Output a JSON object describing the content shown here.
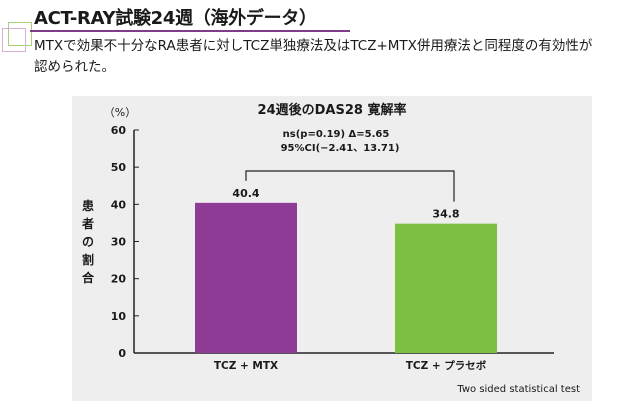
{
  "header": {
    "title": "ACT-RAY試験24週（海外データ）",
    "subtitle": "MTXで効果不十分なRA患者に対しTCZ単独療法及はTCZ+MTX併用療法と同程度の有効性が認められた。"
  },
  "chart_data": {
    "type": "bar",
    "title": "24週後のDAS28 寛解率",
    "categories": [
      "TCZ + MTX",
      "TCZ + プラセボ"
    ],
    "values": [
      40.4,
      34.8
    ],
    "value_labels": [
      "40.4",
      "34.8"
    ],
    "colors": [
      "#8e3b96",
      "#7cc043"
    ],
    "ylabel": "患者の割合",
    "yunit": "（%）",
    "ylim": [
      0,
      60
    ],
    "yticks": [
      0,
      10,
      20,
      30,
      40,
      50,
      60
    ],
    "annotation_line1": "ns(p=0.19) Δ=5.65",
    "annotation_line2": "95%CI(−2.41、13.71)",
    "footnote": "Two sided statistical test"
  }
}
